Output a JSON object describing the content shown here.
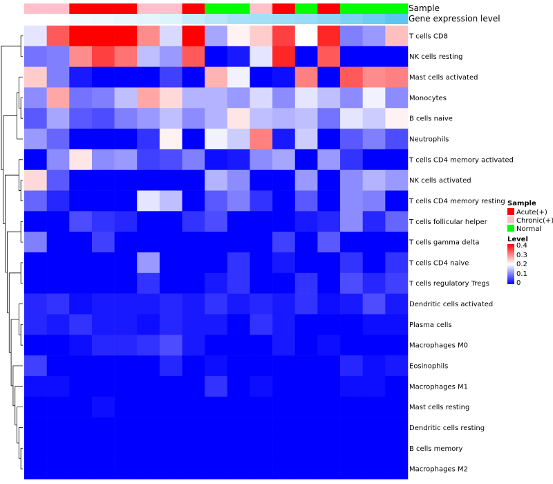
{
  "chart_data": {
    "type": "heatmap",
    "title": "",
    "row_labels": [
      "T cells CD8",
      "NK cells resting",
      "Mast cells activated",
      "Monocytes",
      "B cells naive",
      "Neutrophils",
      "T cells CD4 memory activated",
      "NK cells activated",
      "T cells CD4 memory resting",
      "T cells follicular helper",
      "T cells gamma delta",
      "T cells CD4 naive",
      "T cells regulatory  Tregs",
      "Dendritic cells activated",
      "Plasma cells",
      "Macrophages M0",
      "Eosinophils",
      "Macrophages M1",
      "Mast cells resting",
      "Dendritic cells resting",
      "B cells memory",
      "Macrophages M2"
    ],
    "annotation_rows": [
      {
        "name": "Sample",
        "values": [
          "Chronic(+)",
          "Chronic(+)",
          "Acute(+)",
          "Acute(+)",
          "Acute(+)",
          "Chronic(+)",
          "Chronic(+)",
          "Acute(+)",
          "Normal",
          "Normal",
          "Chronic(+)",
          "Acute(+)",
          "Normal",
          "Acute(+)",
          "Normal",
          "Normal",
          "Normal"
        ]
      },
      {
        "name": "Gene expression level",
        "values": [
          0.0,
          0.0,
          0.02,
          0.03,
          0.04,
          0.05,
          0.06,
          0.1,
          0.13,
          0.16,
          0.17,
          0.18,
          0.19,
          0.21,
          0.24,
          0.27,
          0.3
        ]
      }
    ],
    "matrix": [
      [
        0.18,
        0.33,
        0.4,
        0.4,
        0.4,
        0.29,
        0.17,
        0.4,
        0.13,
        0.21,
        0.24,
        0.35,
        0.2,
        0.37,
        0.1,
        0.12,
        0.25
      ],
      [
        0.09,
        0.1,
        0.29,
        0.35,
        0.31,
        0.15,
        0.12,
        0.33,
        0.0,
        0.02,
        0.18,
        0.37,
        0.0,
        0.33,
        0.0,
        0.0,
        0.0
      ],
      [
        0.24,
        0.1,
        0.02,
        0.0,
        0.0,
        0.0,
        0.05,
        0.0,
        0.26,
        0.19,
        0.0,
        0.01,
        0.3,
        0.0,
        0.33,
        0.29,
        0.3
      ],
      [
        0.11,
        0.27,
        0.09,
        0.1,
        0.15,
        0.27,
        0.23,
        0.14,
        0.14,
        0.12,
        0.17,
        0.11,
        0.18,
        0.15,
        0.11,
        0.19,
        0.11
      ],
      [
        0.07,
        0.13,
        0.07,
        0.06,
        0.1,
        0.12,
        0.15,
        0.11,
        0.14,
        0.22,
        0.15,
        0.14,
        0.15,
        0.09,
        0.18,
        0.16,
        0.21
      ],
      [
        0.12,
        0.08,
        0.0,
        0.0,
        0.0,
        0.04,
        0.21,
        0.0,
        0.19,
        0.16,
        0.3,
        0.02,
        0.16,
        0.0,
        0.07,
        0.1,
        0.06
      ],
      [
        0.0,
        0.11,
        0.22,
        0.11,
        0.12,
        0.05,
        0.06,
        0.1,
        0.01,
        0.02,
        0.11,
        0.13,
        0.0,
        0.12,
        0.04,
        0.0,
        0.0
      ],
      [
        0.23,
        0.07,
        0.0,
        0.0,
        0.0,
        0.0,
        0.0,
        0.0,
        0.14,
        0.11,
        0.0,
        0.0,
        0.12,
        0.0,
        0.11,
        0.14,
        0.12
      ],
      [
        0.08,
        0.03,
        0.0,
        0.0,
        0.0,
        0.18,
        0.15,
        0.0,
        0.07,
        0.1,
        0.04,
        0.0,
        0.07,
        0.0,
        0.11,
        0.1,
        0.0
      ],
      [
        0.0,
        0.0,
        0.06,
        0.04,
        0.03,
        0.0,
        0.0,
        0.04,
        0.06,
        0.0,
        0.0,
        0.0,
        0.02,
        0.03,
        0.11,
        0.03,
        0.08
      ],
      [
        0.1,
        0.0,
        0.0,
        0.05,
        0.0,
        0.0,
        0.0,
        0.0,
        0.0,
        0.0,
        0.0,
        0.05,
        0.0,
        0.07,
        0.0,
        0.0,
        0.0
      ],
      [
        0.0,
        0.0,
        0.0,
        0.0,
        0.0,
        0.12,
        0.0,
        0.0,
        0.0,
        0.04,
        0.0,
        0.02,
        0.0,
        0.0,
        0.04,
        0.0,
        0.04
      ],
      [
        0.0,
        0.0,
        0.0,
        0.0,
        0.0,
        0.04,
        0.0,
        0.0,
        0.02,
        0.04,
        0.0,
        0.0,
        0.04,
        0.0,
        0.06,
        0.03,
        0.05
      ],
      [
        0.03,
        0.04,
        0.01,
        0.02,
        0.02,
        0.02,
        0.03,
        0.02,
        0.04,
        0.02,
        0.03,
        0.02,
        0.04,
        0.01,
        0.02,
        0.06,
        0.02
      ],
      [
        0.03,
        0.02,
        0.04,
        0.02,
        0.02,
        0.01,
        0.03,
        0.02,
        0.02,
        0.0,
        0.04,
        0.02,
        0.0,
        0.0,
        0.0,
        0.01,
        0.01
      ],
      [
        0.0,
        0.0,
        0.01,
        0.03,
        0.03,
        0.04,
        0.06,
        0.02,
        0.0,
        0.0,
        0.0,
        0.02,
        0.0,
        0.01,
        0.0,
        0.0,
        0.0
      ],
      [
        0.05,
        0.0,
        0.0,
        0.0,
        0.0,
        0.0,
        0.03,
        0.0,
        0.01,
        0.0,
        0.0,
        0.0,
        0.0,
        0.0,
        0.03,
        0.01,
        0.02
      ],
      [
        0.01,
        0.01,
        0.0,
        0.0,
        0.0,
        0.0,
        0.0,
        0.0,
        0.04,
        0.0,
        0.01,
        0.0,
        0.0,
        0.0,
        0.01,
        0.01,
        0.0
      ],
      [
        0.0,
        0.0,
        0.0,
        0.01,
        0.0,
        0.0,
        0.0,
        0.0,
        0.0,
        0.0,
        0.0,
        0.0,
        0.0,
        0.0,
        0.0,
        0.0,
        0.0
      ],
      [
        0.0,
        0.0,
        0.0,
        0.0,
        0.0,
        0.0,
        0.0,
        0.0,
        0.0,
        0.0,
        0.0,
        0.0,
        0.0,
        0.0,
        0.0,
        0.0,
        0.0
      ],
      [
        0.0,
        0.0,
        0.0,
        0.0,
        0.0,
        0.0,
        0.0,
        0.0,
        0.0,
        0.0,
        0.0,
        0.0,
        0.0,
        0.0,
        0.0,
        0.0,
        0.0
      ],
      [
        0.0,
        0.0,
        0.0,
        0.0,
        0.0,
        0.0,
        0.0,
        0.0,
        0.0,
        0.0,
        0.0,
        0.0,
        0.0,
        0.0,
        0.0,
        0.0,
        0.0
      ]
    ],
    "color_scale": {
      "min": 0,
      "max": 0.4,
      "stops": [
        {
          "value": 0,
          "color": "#0000ff"
        },
        {
          "value": 0.2,
          "color": "#ffffff"
        },
        {
          "value": 0.4,
          "color": "#ff0000"
        }
      ]
    },
    "legend": {
      "sample": {
        "title": "Sample",
        "entries": [
          {
            "label": "Acute(+)",
            "color": "#ff0000"
          },
          {
            "label": "Chronic(+)",
            "color": "#ffc0cb"
          },
          {
            "label": "Normal",
            "color": "#00ff00"
          }
        ]
      },
      "level": {
        "title": "Level",
        "ticks": [
          "0.4",
          "0.3",
          "0.2",
          "0.1",
          "0"
        ]
      },
      "placement": "right"
    },
    "gene_expression_colors": [
      "#ffffff",
      "#5cc6f0"
    ],
    "dendrogram": "rows"
  }
}
